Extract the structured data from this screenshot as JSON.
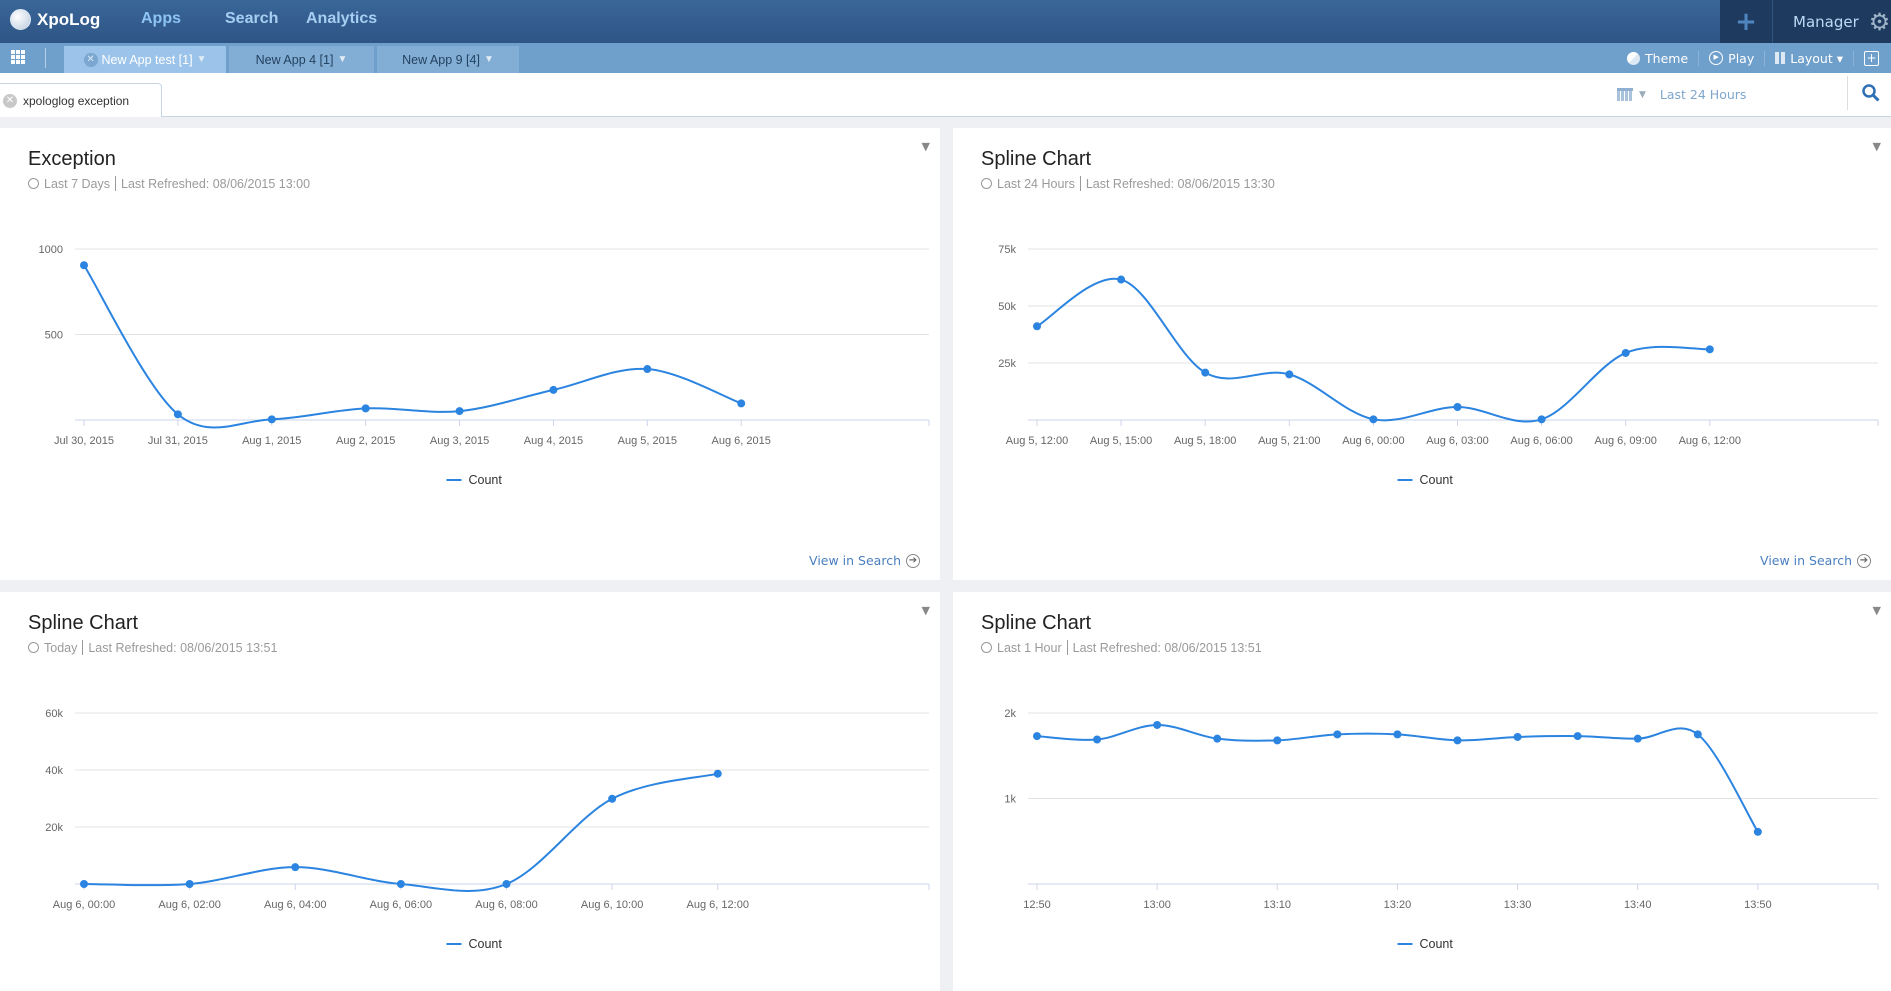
{
  "topnav": {
    "brand": "XpoLog",
    "links": [
      "Apps",
      "Search",
      "Analytics"
    ],
    "active": "Apps",
    "manager": "Manager"
  },
  "tabs": [
    {
      "label": "New App test [1]",
      "active": true
    },
    {
      "label": "New App 4 [1]"
    },
    {
      "label": "New App 9 [4]"
    }
  ],
  "tools": {
    "theme": "Theme",
    "play": "Play",
    "layout": "Layout ▾"
  },
  "filter": {
    "chip": "xpologlog exception",
    "time": "Last 24 Hours"
  },
  "colors": {
    "series": "#2b84e0",
    "nav": "#2e5585",
    "tabbar": "#6f9fcb"
  },
  "panels": [
    {
      "title": "Exception",
      "range": "Last 7 Days",
      "refreshed": "Last Refreshed: 08/06/2015 13:00",
      "view": "View in Search"
    },
    {
      "title": "Spline Chart",
      "range": "Last 24 Hours",
      "refreshed": "Last Refreshed: 08/06/2015 13:30",
      "view": "View in Search"
    },
    {
      "title": "Spline Chart",
      "range": "Today",
      "refreshed": "Last Refreshed: 08/06/2015 13:51"
    },
    {
      "title": "Spline Chart",
      "range": "Last 1 Hour",
      "refreshed": "Last Refreshed: 08/06/2015 13:51"
    }
  ],
  "chart_data": [
    {
      "type": "line",
      "title": "Exception",
      "legend": [
        "Count"
      ],
      "legend_position": "bottom-center",
      "grid": true,
      "categories": [
        "Jul 30, 2015",
        "Jul 31, 2015",
        "Aug 1, 2015",
        "Aug 2, 2015",
        "Aug 3, 2015",
        "Aug 4, 2015",
        "Aug 5, 2015",
        "Aug 6, 2015"
      ],
      "series": [
        {
          "name": "Count",
          "values": [
            905,
            33,
            4,
            68,
            52,
            176,
            298,
            97
          ]
        }
      ],
      "yticks": [
        {
          "v": 500,
          "label": "500"
        },
        {
          "v": 1000,
          "label": "1000"
        }
      ],
      "ylim": [
        0,
        1000
      ]
    },
    {
      "type": "line",
      "title": "Spline Chart",
      "legend": [
        "Count"
      ],
      "legend_position": "bottom-center",
      "grid": true,
      "categories": [
        "Aug 5, 12:00",
        "Aug 5, 15:00",
        "Aug 5, 18:00",
        "Aug 5, 21:00",
        "Aug 6, 00:00",
        "Aug 6, 03:00",
        "Aug 6, 06:00",
        "Aug 6, 09:00",
        "Aug 6, 12:00"
      ],
      "series": [
        {
          "name": "Count",
          "values": [
            41100,
            61600,
            20800,
            20000,
            300,
            5700,
            300,
            29400,
            31000
          ]
        }
      ],
      "yticks": [
        {
          "v": 25000,
          "label": "25k"
        },
        {
          "v": 50000,
          "label": "50k"
        },
        {
          "v": 75000,
          "label": "75k"
        }
      ],
      "ylim": [
        0,
        75000
      ]
    },
    {
      "type": "line",
      "title": "Spline Chart",
      "legend": [
        "Count"
      ],
      "legend_position": "bottom-center",
      "grid": true,
      "categories": [
        "Aug 6, 00:00",
        "Aug 6, 02:00",
        "Aug 6, 04:00",
        "Aug 6, 06:00",
        "Aug 6, 08:00",
        "Aug 6, 10:00",
        "Aug 6, 12:00"
      ],
      "series": [
        {
          "name": "Count",
          "values": [
            0,
            0,
            5900,
            0,
            0,
            29900,
            38700
          ]
        }
      ],
      "yticks": [
        {
          "v": 20000,
          "label": "20k"
        },
        {
          "v": 40000,
          "label": "40k"
        },
        {
          "v": 60000,
          "label": "60k"
        }
      ],
      "ylim": [
        0,
        60000
      ]
    },
    {
      "type": "line",
      "title": "Spline Chart",
      "legend": [
        "Count"
      ],
      "legend_position": "bottom-center",
      "grid": true,
      "categories": [
        "12:50",
        "12:55",
        "13:00",
        "13:05",
        "13:10",
        "13:15",
        "13:20",
        "13:25",
        "13:30",
        "13:35",
        "13:40",
        "13:45",
        "13:50"
      ],
      "labeled_categories": [
        "12:50",
        "13:00",
        "13:10",
        "13:20",
        "13:30",
        "13:40",
        "13:50"
      ],
      "series": [
        {
          "name": "Count",
          "values": [
            1730,
            1690,
            1860,
            1700,
            1680,
            1750,
            1750,
            1680,
            1720,
            1730,
            1700,
            1750,
            610
          ]
        }
      ],
      "yticks": [
        {
          "v": 1000,
          "label": "1k"
        },
        {
          "v": 2000,
          "label": "2k"
        }
      ],
      "ylim": [
        0,
        2000
      ]
    }
  ]
}
